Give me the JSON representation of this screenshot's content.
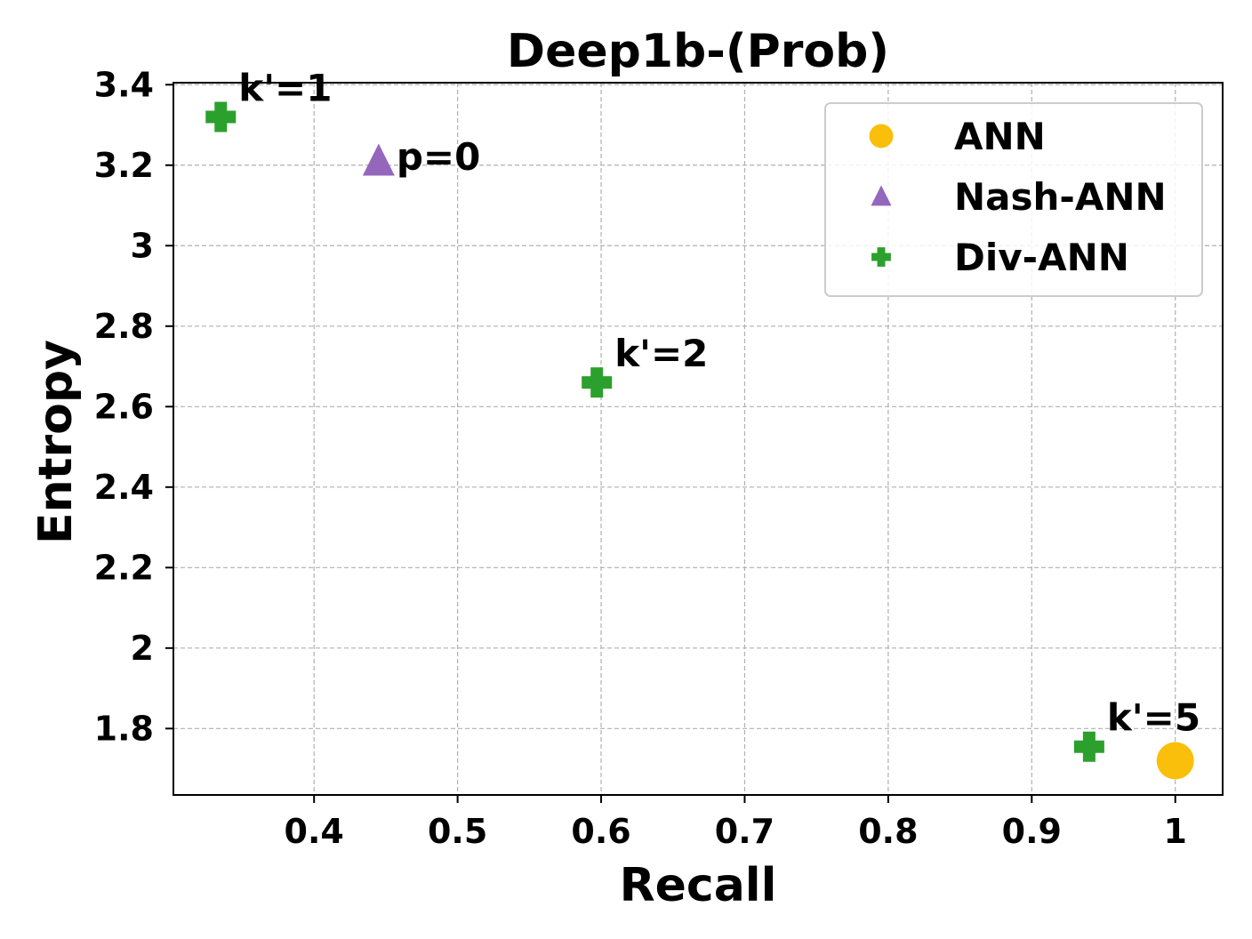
{
  "chart_data": {
    "type": "scatter",
    "title": "Deep1b-(Prob)",
    "xlabel": "Recall",
    "ylabel": "Entropy",
    "xlim": [
      0.302,
      1.033
    ],
    "ylim": [
      1.635,
      3.405
    ],
    "xticks": [
      0.4,
      0.5,
      0.6,
      0.7,
      0.8,
      0.9,
      1
    ],
    "xtick_labels": [
      "0.4",
      "0.5",
      "0.6",
      "0.7",
      "0.8",
      "0.9",
      "1"
    ],
    "yticks": [
      1.8,
      2.0,
      2.2,
      2.4,
      2.6,
      2.8,
      3.0,
      3.2,
      3.4
    ],
    "ytick_labels": [
      "1.8",
      "2",
      "2.2",
      "2.4",
      "2.6",
      "2.8",
      "3",
      "3.2",
      "3.4"
    ],
    "grid": true,
    "legend_position": "top-right",
    "series": [
      {
        "name": "ANN",
        "marker": "circle",
        "color": "#f9bf0a",
        "points": [
          {
            "x": 1.0,
            "y": 1.72,
            "label": ""
          }
        ]
      },
      {
        "name": "Nash-ANN",
        "marker": "triangle",
        "color": "#9467bd",
        "points": [
          {
            "x": 0.445,
            "y": 3.21,
            "label": "p=0"
          }
        ]
      },
      {
        "name": "Div-ANN",
        "marker": "plus",
        "color": "#2ca02c",
        "points": [
          {
            "x": 0.335,
            "y": 3.32,
            "label": "k'=1"
          },
          {
            "x": 0.597,
            "y": 2.66,
            "label": "k'=2"
          },
          {
            "x": 0.94,
            "y": 1.755,
            "label": "k'=5"
          }
        ]
      }
    ]
  }
}
